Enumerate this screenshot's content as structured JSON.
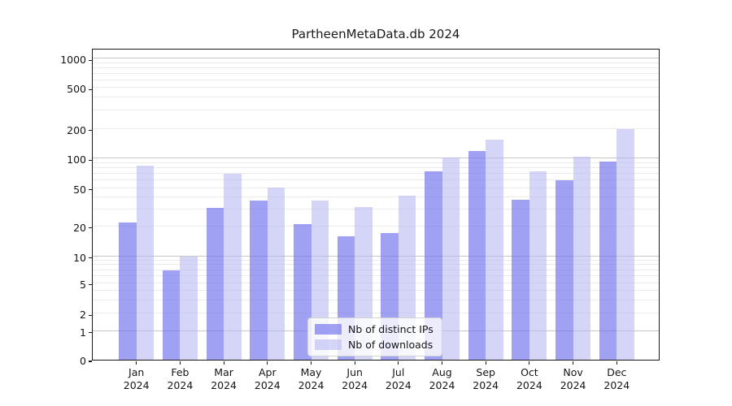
{
  "title": "PartheenMetaData.db 2024",
  "legend": [
    {
      "label": "Nb of distinct IPs",
      "color": "rgba(112,112,239,0.66)"
    },
    {
      "label": "Nb of downloads",
      "color": "rgba(183,183,243,0.58)"
    }
  ],
  "chart_data": {
    "type": "bar",
    "title": "PartheenMetaData.db 2024",
    "categories": [
      "Jan 2024",
      "Feb 2024",
      "Mar 2024",
      "Apr 2024",
      "May 2024",
      "Jun 2024",
      "Jul 2024",
      "Aug 2024",
      "Sep 2024",
      "Oct 2024",
      "Nov 2024",
      "Dec 2024"
    ],
    "series": [
      {
        "name": "Nb of distinct IPs",
        "color": "rgba(112,112,239,0.66)",
        "values": [
          22,
          7,
          31,
          37,
          21,
          16,
          17,
          74,
          119,
          38,
          60,
          94
        ]
      },
      {
        "name": "Nb of downloads",
        "color": "rgba(183,183,243,0.58)",
        "values": [
          85,
          10,
          70,
          51,
          37,
          32,
          42,
          103,
          155,
          74,
          105,
          200
        ]
      }
    ],
    "yscale": "log-like with linear segment below 1",
    "ylim": [
      0,
      1286
    ],
    "grid": true,
    "legend_position": "lower center",
    "yticks": [
      {
        "label": "0",
        "value": 0,
        "pos": 0.0
      },
      {
        "label": "1",
        "value": 1,
        "pos": 0.092
      },
      {
        "label": "2",
        "value": 2,
        "pos": 0.148
      },
      {
        "label": "5",
        "value": 5,
        "pos": 0.246
      },
      {
        "label": "10",
        "value": 10,
        "pos": 0.331
      },
      {
        "label": "20",
        "value": 20,
        "pos": 0.428
      },
      {
        "label": "50",
        "value": 50,
        "pos": 0.55
      },
      {
        "label": "100",
        "value": 100,
        "pos": 0.645
      },
      {
        "label": "200",
        "value": 200,
        "pos": 0.741
      },
      {
        "label": "500",
        "value": 500,
        "pos": 0.872
      },
      {
        "label": "1000",
        "value": 1000,
        "pos": 0.965
      }
    ]
  }
}
